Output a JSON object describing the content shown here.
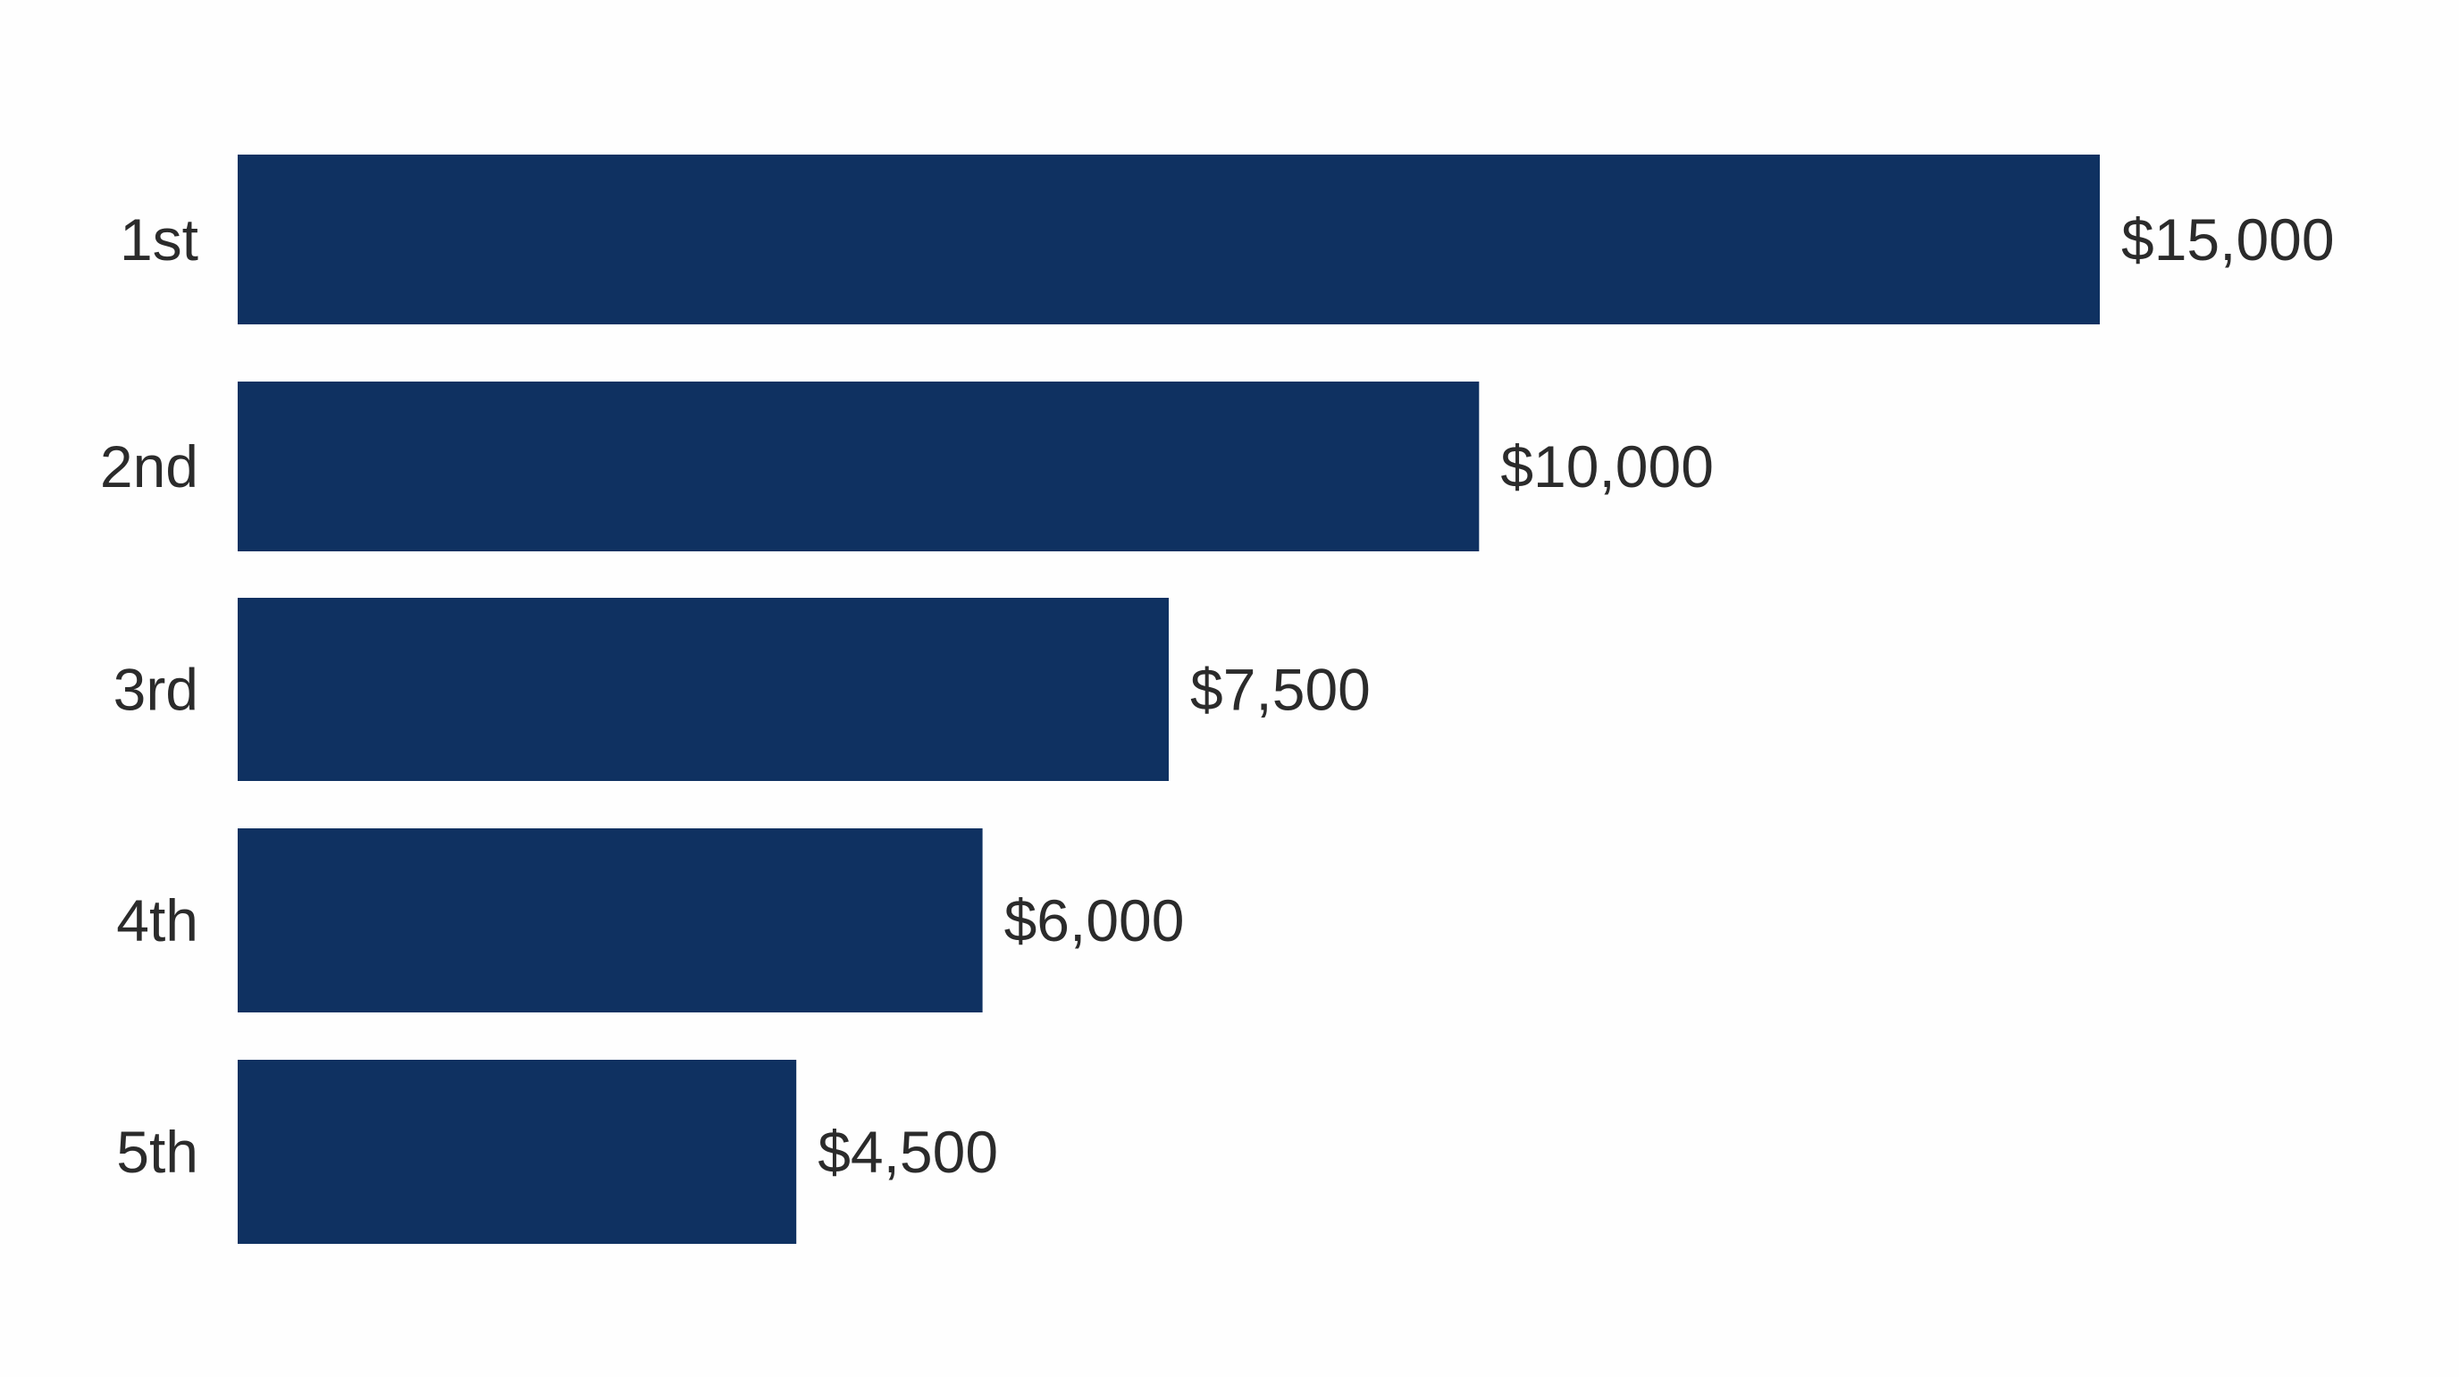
{
  "chart_data": {
    "type": "bar",
    "orientation": "horizontal",
    "title": "",
    "xlabel": "",
    "ylabel": "",
    "categories": [
      "1st",
      "2nd",
      "3rd",
      "4th",
      "5th"
    ],
    "values": [
      15000,
      10000,
      7500,
      6000,
      4500
    ],
    "data_labels": [
      "$15,000",
      "$10,000",
      "$7,500",
      "$6,000",
      "$4,500"
    ],
    "xlim": [
      0,
      15000
    ],
    "grid": false,
    "legend": "none",
    "colors": {
      "bar": "#0f3161",
      "text": "#2b2b2b",
      "background": "#fefefe"
    }
  }
}
